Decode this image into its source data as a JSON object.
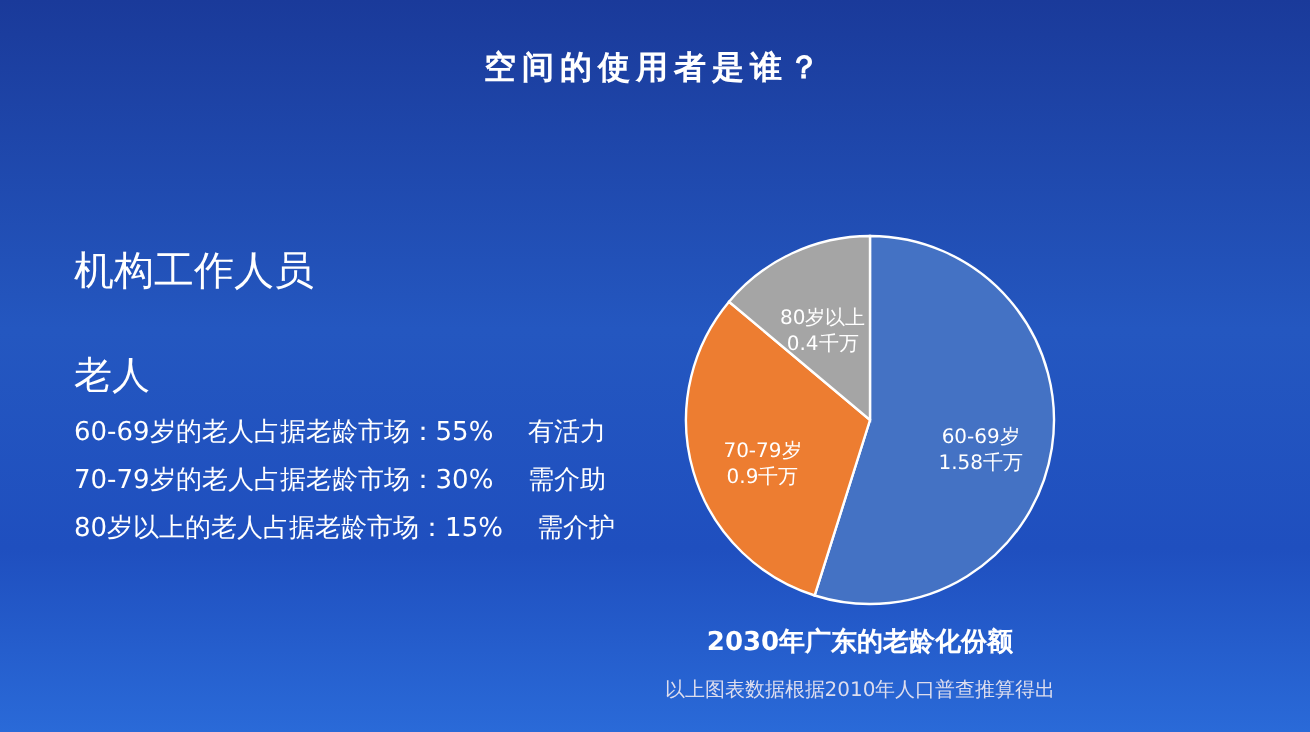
{
  "chart_data": {
    "type": "pie",
    "title": "空间的使用者是谁？",
    "subtitle": "2030年广东的老龄化份额",
    "categories": [
      "60-69岁",
      "70-79岁",
      "80岁以上"
    ],
    "values": [
      1.58,
      0.9,
      0.4
    ],
    "value_labels": [
      "1.58千万",
      "0.9千万",
      "0.4千万"
    ],
    "colors": [
      "#4472c4",
      "#ed7d31",
      "#a5a5a5"
    ],
    "legend": false,
    "annotations": [
      "机构工作人员",
      "老人",
      "60-69岁的老人占据老龄市场：55%　 有活力",
      "70-79岁的老人占据老龄市场：30%　 需介助",
      "80岁以上的老人占据老龄市场：15%　 需介护",
      "以上图表数据根据2010年人口普查推算得出"
    ]
  }
}
